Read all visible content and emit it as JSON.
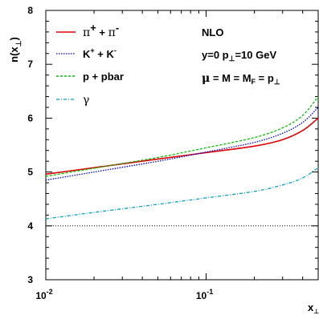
{
  "chart_data": {
    "type": "line",
    "xlabel": "x⊥",
    "ylabel": "n(x⊥)",
    "xscale": "log",
    "xlim": [
      0.01,
      0.5
    ],
    "ylim": [
      3,
      8
    ],
    "yticks": [
      3,
      4,
      5,
      6,
      7,
      8
    ],
    "xticks": [
      {
        "value": 0.01,
        "base": "10",
        "exp": "-2"
      },
      {
        "value": 0.1,
        "base": "10",
        "exp": "-1"
      }
    ],
    "annotations": [
      "NLO",
      "y=0  p⊥=10 GeV",
      "μ = M = MF = p⊥"
    ],
    "reference_line": {
      "y": 4.0,
      "style": "dotted",
      "color": "#000000"
    },
    "series": [
      {
        "name": "π+ + π-",
        "color": "#e00000",
        "style": "solid",
        "x": [
          0.01,
          0.02,
          0.05,
          0.1,
          0.2,
          0.3,
          0.4,
          0.5
        ],
        "y": [
          4.96,
          5.08,
          5.24,
          5.36,
          5.48,
          5.6,
          5.77,
          6.0
        ]
      },
      {
        "name": "K+ + K-",
        "color": "#0000e0",
        "style": "dotted",
        "x": [
          0.01,
          0.02,
          0.05,
          0.1,
          0.2,
          0.3,
          0.4,
          0.5
        ],
        "y": [
          4.85,
          5.0,
          5.2,
          5.37,
          5.55,
          5.72,
          5.92,
          6.2
        ]
      },
      {
        "name": "p + pbar",
        "color": "#00c000",
        "style": "dashed",
        "x": [
          0.01,
          0.02,
          0.05,
          0.1,
          0.2,
          0.3,
          0.4,
          0.5
        ],
        "y": [
          4.92,
          5.07,
          5.27,
          5.45,
          5.64,
          5.82,
          6.05,
          6.4
        ]
      },
      {
        "name": "γ",
        "color": "#00a0c0",
        "style": "dashdot",
        "x": [
          0.01,
          0.02,
          0.05,
          0.1,
          0.2,
          0.3,
          0.4,
          0.5
        ],
        "y": [
          4.13,
          4.25,
          4.4,
          4.52,
          4.64,
          4.76,
          4.89,
          5.08
        ]
      }
    ]
  }
}
